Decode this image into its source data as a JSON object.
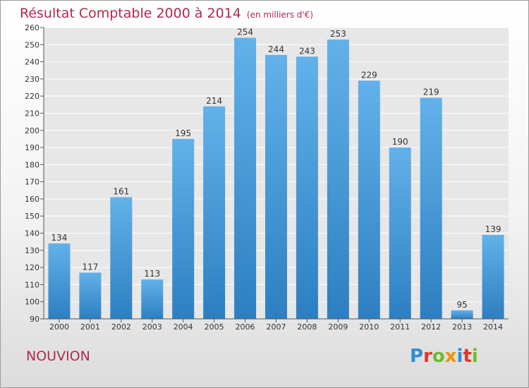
{
  "header": {
    "title": "Résultat Comptable 2000 à 2014",
    "subtitle": "(en milliers d'€)"
  },
  "location": "NOUVION",
  "logo": {
    "text": "Proxiti",
    "letter_colors": [
      "#2f8fd6",
      "#e5332a",
      "#6dbb2b",
      "#f39200",
      "#2f8fd6",
      "#e5332a",
      "#6dbb2b"
    ]
  },
  "colors": {
    "bar_top": "#62b1ea",
    "bar_bottom": "#2d7fc1",
    "accent": "#b02a50",
    "grid": "#ffffff"
  },
  "chart_data": {
    "type": "bar",
    "categories": [
      "2000",
      "2001",
      "2002",
      "2003",
      "2004",
      "2005",
      "2006",
      "2007",
      "2008",
      "2009",
      "2010",
      "2011",
      "2012",
      "2013",
      "2014"
    ],
    "values": [
      134,
      117,
      161,
      113,
      195,
      214,
      254,
      244,
      243,
      253,
      229,
      190,
      219,
      95,
      139
    ],
    "ylim": [
      90,
      260
    ],
    "yticks": [
      90,
      100,
      110,
      120,
      130,
      140,
      150,
      160,
      170,
      180,
      190,
      200,
      210,
      220,
      230,
      240,
      250,
      260
    ],
    "xlabel": "",
    "ylabel": "",
    "grid": true
  }
}
